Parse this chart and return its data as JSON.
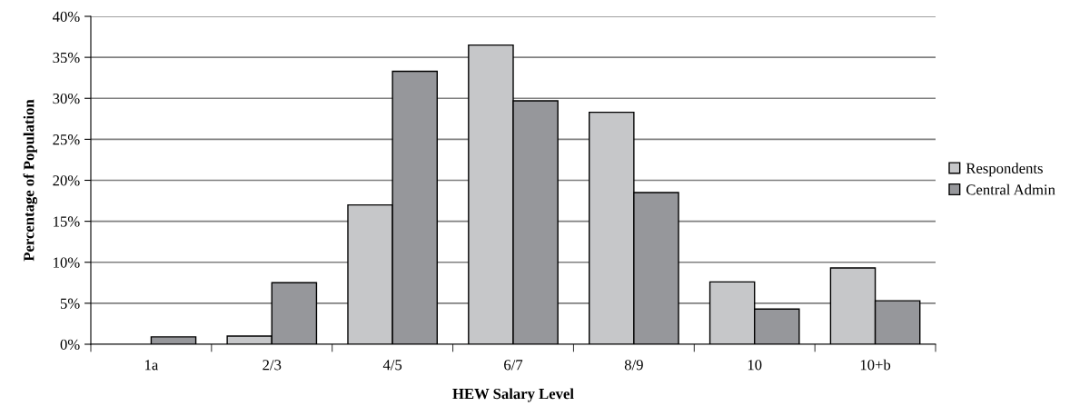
{
  "chart_data": {
    "type": "bar",
    "xlabel": "HEW Salary Level",
    "ylabel": "Percentage of Population",
    "categories": [
      "1a",
      "2/3",
      "4/5",
      "6/7",
      "8/9",
      "10",
      "10+b"
    ],
    "series": [
      {
        "name": "Respondents",
        "color": "#c6c7c9",
        "values": [
          0,
          1.0,
          17.0,
          36.5,
          28.3,
          7.6,
          9.3
        ]
      },
      {
        "name": "Central Admin",
        "color": "#96979b",
        "values": [
          0.9,
          7.5,
          33.3,
          29.7,
          18.5,
          4.3,
          5.3
        ]
      }
    ],
    "ylim": [
      0,
      40
    ],
    "yticks": [
      {
        "value": 0,
        "label": "0%"
      },
      {
        "value": 5,
        "label": "5%"
      },
      {
        "value": 10,
        "label": "10%"
      },
      {
        "value": 15,
        "label": "15%"
      },
      {
        "value": 20,
        "label": "20%"
      },
      {
        "value": 25,
        "label": "25%"
      },
      {
        "value": 30,
        "label": "30%"
      },
      {
        "value": 35,
        "label": "35%"
      },
      {
        "value": 40,
        "label": "40%"
      }
    ],
    "grid": "y",
    "legend": "right"
  }
}
